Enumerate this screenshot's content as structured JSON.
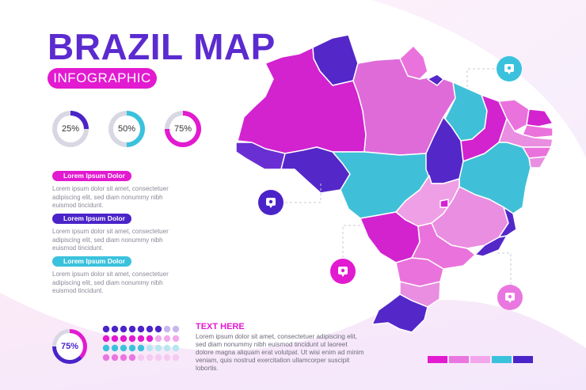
{
  "header": {
    "title": "BRAZIL MAP",
    "subtitle": "INFOGRAPHIC"
  },
  "percent_rings": [
    {
      "label": "25%",
      "value": 0.25,
      "color": "#4b24c9"
    },
    {
      "label": "50%",
      "value": 0.5,
      "color": "#3ac2dd"
    },
    {
      "label": "75%",
      "value": 0.75,
      "color": "#e21ad0"
    }
  ],
  "legend_blocks": [
    {
      "title": "Lorem Ipsum Dolor",
      "color": "#e21ad0",
      "text": "Lorem ipsum dolor sit amet, consectetuer adipiscing elit, sed diam nonummy nibh euismod tincidunt."
    },
    {
      "title": "Lorem Ipsum Dolor",
      "color": "#4b24c9",
      "text": "Lorem ipsum dolor sit amet, consectetuer adipiscing elit, sed diam nonummy nibh euismod tincidunt."
    },
    {
      "title": "Lorem Ipsum Dolor",
      "color": "#3ac2dd",
      "text": "Lorem ipsum dolor sit amet, consectetuer adipiscing elit, sed diam nonummy nibh euismod tincidunt."
    }
  ],
  "big_ring": {
    "label": "75%",
    "value": 0.75
  },
  "dot_grid_rows": [
    [
      "#4b24c9",
      "#4b24c9",
      "#4b24c9",
      "#4b24c9",
      "#4b24c9",
      "#4b24c9",
      "#4b24c9",
      "#c8b7ee",
      "#c8b7ee"
    ],
    [
      "#e21ad0",
      "#e21ad0",
      "#e21ad0",
      "#e21ad0",
      "#e21ad0",
      "#e21ad0",
      "#f2a9ec",
      "#f2a9ec",
      "#f2a9ec"
    ],
    [
      "#3ac2dd",
      "#3ac2dd",
      "#3ac2dd",
      "#3ac2dd",
      "#3ac2dd",
      "#b6e7f1",
      "#b6e7f1",
      "#b6e7f1",
      "#b6e7f1"
    ],
    [
      "#ea76e0",
      "#ea76e0",
      "#ea76e0",
      "#ea76e0",
      "#f6c9f2",
      "#f6c9f2",
      "#f6c9f2",
      "#f6c9f2",
      "#f6c9f2"
    ]
  ],
  "footer": {
    "heading": "TEXT HERE",
    "paragraph": "Lorem ipsum dolor sit amet, consectetuer adipiscing elit, sed diam nonummy nibh euismod tincidunt ut laoreet dolore magna aliquam erat volutpat. Ut wisi enim ad minim veniam, quis nostrud exercitation ullamcorper suscipit lobortis."
  },
  "color_scale": [
    "#e21ad0",
    "#ea76e0",
    "#f3a6ec",
    "#3ac2dd",
    "#4b24c9"
  ],
  "pins": [
    {
      "name": "pin-north-east",
      "color": "#3ac2dd"
    },
    {
      "name": "pin-west",
      "color": "#4b24c9"
    },
    {
      "name": "pin-center",
      "color": "#e21ad0"
    },
    {
      "name": "pin-south-east",
      "color": "#ea76e0"
    }
  ],
  "icons": [
    "map-pin-icon"
  ]
}
